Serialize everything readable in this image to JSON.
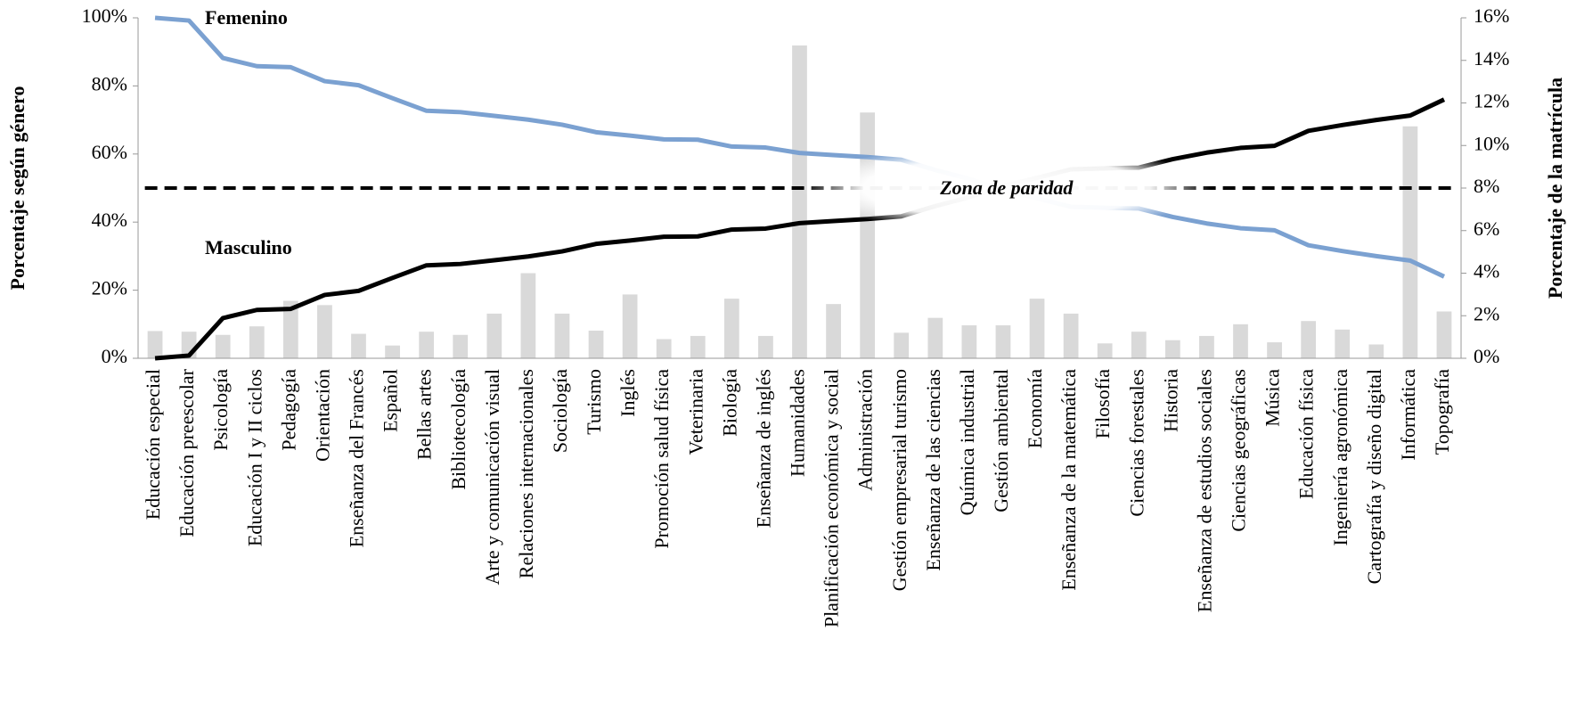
{
  "chart_data": {
    "type": "bar-line",
    "y_label": "Porcentaje según género",
    "y2_label": "Porcentaje de la matrícula",
    "annotations": [
      "Zona de paridad"
    ],
    "parity_line": 50,
    "categories": [
      "Educación especial",
      "Educación preescolar",
      "Psicología",
      "Educación I y II ciclos",
      "Pedagogía",
      "Orientación",
      "Enseñanza del Francés",
      "Español",
      "Bellas artes",
      "Bibliotecología",
      "Arte y comunicación visual",
      "Relaciones internacionales",
      "Sociología",
      "Turismo",
      "Inglés",
      "Promoción salud física",
      "Veterinaria",
      "Biología",
      "Enseñanza de inglés",
      "Humanidades",
      "Planificación económica y social",
      "Administración",
      "Gestión empresarial turismo",
      "Enseñanza de las ciencias",
      "Química industrial",
      "Gestión ambiental",
      "Economía",
      "Enseñanza de la matemática",
      "Filosofía",
      "Ciencias forestales",
      "Historia",
      "Enseñanza de estudios sociales",
      "Ciencias geográficas",
      "Música",
      "Educación física",
      "Ingeniería agronómica",
      "Cartografía y diseño digital",
      "Informática",
      "Topografía"
    ],
    "series": [
      {
        "name": "Femenino",
        "color": "#7ba1d1",
        "text_color": "#1f62a3",
        "values": [
          100,
          99.2,
          88.2,
          85.8,
          85.5,
          81.4,
          80.2,
          76.4,
          72.7,
          72.3,
          71.2,
          70.1,
          68.6,
          66.4,
          65.4,
          64.3,
          64.2,
          62.2,
          61.9,
          60.3,
          59.7,
          59.1,
          58.3,
          55.3,
          52.7,
          49.4,
          47,
          44.5,
          44.2,
          44,
          41.5,
          39.6,
          38.2,
          37.6,
          33.2,
          31.5,
          30,
          28.7,
          24
        ]
      },
      {
        "name": "Masculino",
        "color": "#000000",
        "text_color": "#000000",
        "values": [
          0,
          0.8,
          11.8,
          14.2,
          14.5,
          18.6,
          19.8,
          23.6,
          27.3,
          27.7,
          28.8,
          29.9,
          31.4,
          33.6,
          34.6,
          35.7,
          35.8,
          37.8,
          38.1,
          39.7,
          40.3,
          40.9,
          41.7,
          44.7,
          47.3,
          50.6,
          53,
          55.5,
          55.8,
          56,
          58.5,
          60.4,
          61.8,
          62.4,
          66.8,
          68.5,
          70,
          71.3,
          76
        ]
      },
      {
        "color": "#d9d9d9",
        "axis": "y2",
        "values": [
          1.28,
          1.25,
          1.1,
          1.5,
          2.7,
          2.5,
          1.15,
          0.6,
          1.25,
          1.1,
          2.1,
          4.0,
          2.1,
          1.3,
          3.0,
          0.9,
          1.05,
          2.8,
          1.05,
          14.7,
          2.55,
          11.55,
          1.2,
          1.9,
          1.55,
          1.55,
          2.8,
          2.1,
          0.7,
          1.25,
          0.85,
          1.05,
          1.6,
          0.75,
          1.75,
          1.35,
          0.65,
          10.9,
          2.2
        ]
      }
    ],
    "ylim": [
      0,
      100
    ],
    "yticks": [
      {
        "value": 0,
        "label": "0%"
      },
      {
        "value": 20,
        "label": "20%"
      },
      {
        "value": 40,
        "label": "40%"
      },
      {
        "value": 60,
        "label": "60%"
      },
      {
        "value": 80,
        "label": "80%"
      },
      {
        "value": 100,
        "label": "100%"
      }
    ],
    "y2lim": [
      0,
      16
    ],
    "y2ticks": [
      {
        "value": 0,
        "label": "0%"
      },
      {
        "value": 2,
        "label": "2%"
      },
      {
        "value": 4,
        "label": "4%"
      },
      {
        "value": 6,
        "label": "6%"
      },
      {
        "value": 8,
        "label": "8%"
      },
      {
        "value": 10,
        "label": "10%"
      },
      {
        "value": 12,
        "label": "12%"
      },
      {
        "value": 14,
        "label": "14%"
      },
      {
        "value": 16,
        "label": "16%"
      }
    ],
    "annotation_color": "#17788e"
  }
}
